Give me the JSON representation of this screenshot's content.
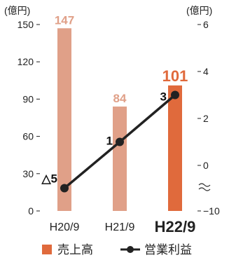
{
  "chart_data": {
    "type": "bar+line",
    "categories": [
      "H20/9",
      "H21/9",
      "H22/9"
    ],
    "highlight_index": 2,
    "left_axis": {
      "unit": "(億円)",
      "ticks": [
        "0",
        "30",
        "60",
        "90",
        "120",
        "150"
      ],
      "ylim": [
        0,
        150
      ]
    },
    "right_axis": {
      "unit": "(億円)",
      "ticks": [
        "−10",
        "0",
        "2",
        "4",
        "6"
      ],
      "ylim": [
        -10,
        6
      ],
      "break": true
    },
    "series": [
      {
        "name": "売上高",
        "kind": "bar",
        "axis": "left",
        "values": [
          147,
          84,
          101
        ],
        "labels": [
          "147",
          "84",
          "101"
        ]
      },
      {
        "name": "営業利益",
        "kind": "line",
        "axis": "right",
        "values": [
          -5,
          1,
          3
        ],
        "labels": [
          "△5",
          "1",
          "3"
        ]
      }
    ],
    "colors": {
      "bar": "#e0a088",
      "bar_highlight": "#e06a3c",
      "line": "#222222"
    }
  }
}
